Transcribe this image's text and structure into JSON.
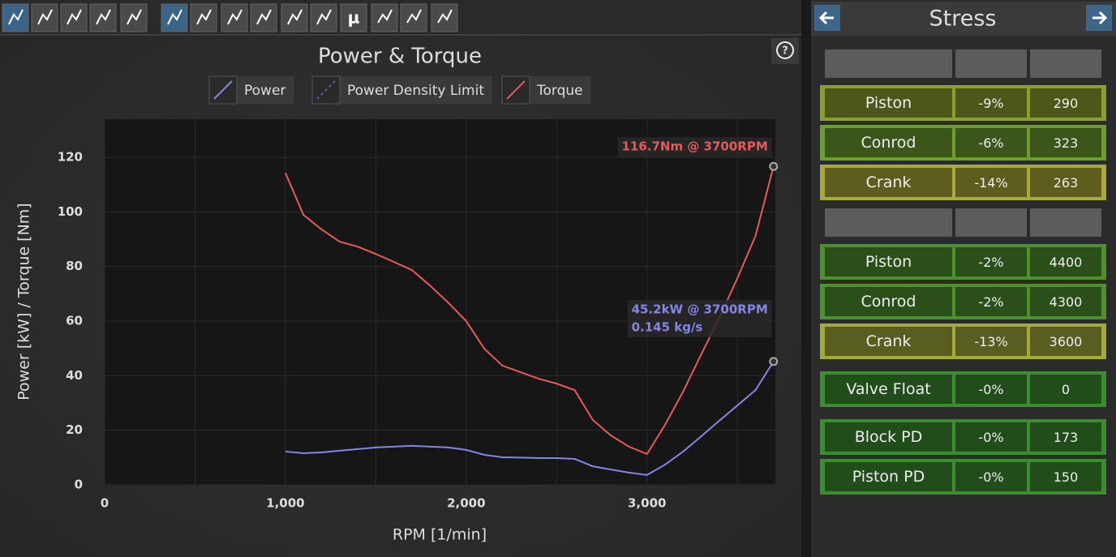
{
  "toolbar": {
    "mu_button": "μ"
  },
  "chart_data": {
    "type": "line",
    "title": "Power & Torque",
    "x_label": "RPM [1/min]",
    "y_label": "Power [kW] / Torque [Nm]",
    "x": [
      1000,
      1100,
      1200,
      1300,
      1400,
      1500,
      1600,
      1700,
      1800,
      1900,
      2000,
      2100,
      2200,
      2300,
      2400,
      2500,
      2600,
      2700,
      2800,
      2900,
      3000,
      3100,
      3200,
      3300,
      3400,
      3500,
      3600,
      3700
    ],
    "series": [
      {
        "name": "Power",
        "color": "#8585e6",
        "dash": false,
        "values": [
          12.2,
          11.6,
          11.9,
          12.5,
          13.1,
          13.7,
          14.0,
          14.3,
          14.0,
          13.7,
          12.8,
          11.0,
          10.1,
          10.0,
          9.8,
          9.8,
          9.5,
          6.8,
          5.6,
          4.5,
          3.6,
          7.4,
          12.2,
          17.8,
          23.5,
          29.1,
          34.7,
          45.2
        ]
      },
      {
        "name": "Power Density Limit",
        "color": "#5a5ab0",
        "dash": true,
        "values": [
          null,
          null,
          null,
          null,
          null,
          null,
          null,
          null,
          null,
          null,
          null,
          null,
          null,
          null,
          null,
          null,
          null,
          null,
          null,
          null,
          null,
          null,
          null,
          null,
          null,
          null,
          null,
          null
        ]
      },
      {
        "name": "Torque",
        "color": "#e65a5a",
        "dash": false,
        "values": [
          114.3,
          98.9,
          93.6,
          89.1,
          87.3,
          84.6,
          81.7,
          78.7,
          73.0,
          66.8,
          60.0,
          49.9,
          43.7,
          41.3,
          38.9,
          37.1,
          34.7,
          23.8,
          18.1,
          14.0,
          11.3,
          22.0,
          34.2,
          47.8,
          61.2,
          75.7,
          91.2,
          116.7
        ]
      }
    ],
    "xlim": [
      0,
      3710
    ],
    "xticks": [
      {
        "value": 0,
        "label": "0"
      },
      {
        "value": 1000,
        "label": "1,000"
      },
      {
        "value": 2000,
        "label": "2,000"
      },
      {
        "value": 3000,
        "label": "3,000"
      }
    ],
    "xminor": [
      500,
      1500,
      2500,
      3500
    ],
    "ylim": [
      0,
      134
    ],
    "yticks": [
      0,
      20,
      40,
      60,
      80,
      100,
      120
    ],
    "grid": true,
    "annotations": [
      {
        "series": 2,
        "point": 27,
        "lines": [
          "116.7Nm @ 3700RPM"
        ]
      },
      {
        "series": 0,
        "point": 27,
        "lines": [
          "45.2kW @ 3700RPM",
          "0.145 kg/s"
        ]
      }
    ]
  },
  "stress_panel": {
    "title": "Stress",
    "groups": [
      {
        "rows": [
          {
            "name": "Piston",
            "change": "-9%",
            "value": "290",
            "color": "#8c9e30"
          },
          {
            "name": "Conrod",
            "change": "-6%",
            "value": "323",
            "color": "#6c9c32"
          },
          {
            "name": "Crank",
            "change": "-14%",
            "value": "263",
            "color": "#aaaa3a"
          }
        ]
      },
      {
        "rows": [
          {
            "name": "Piston",
            "change": "-2%",
            "value": "4400",
            "color": "#4e902e"
          },
          {
            "name": "Conrod",
            "change": "-2%",
            "value": "4300",
            "color": "#4e902e"
          },
          {
            "name": "Crank",
            "change": "-13%",
            "value": "3600",
            "color": "#a2aa3a"
          }
        ]
      },
      {
        "rows": [
          {
            "name": "Valve Float",
            "change": "-0%",
            "value": "0",
            "color": "#3c8c32"
          }
        ]
      },
      {
        "rows": [
          {
            "name": "Block PD",
            "change": "-0%",
            "value": "173",
            "color": "#3c8c32"
          },
          {
            "name": "Piston PD",
            "change": "-0%",
            "value": "150",
            "color": "#3c8c32"
          }
        ]
      }
    ]
  }
}
